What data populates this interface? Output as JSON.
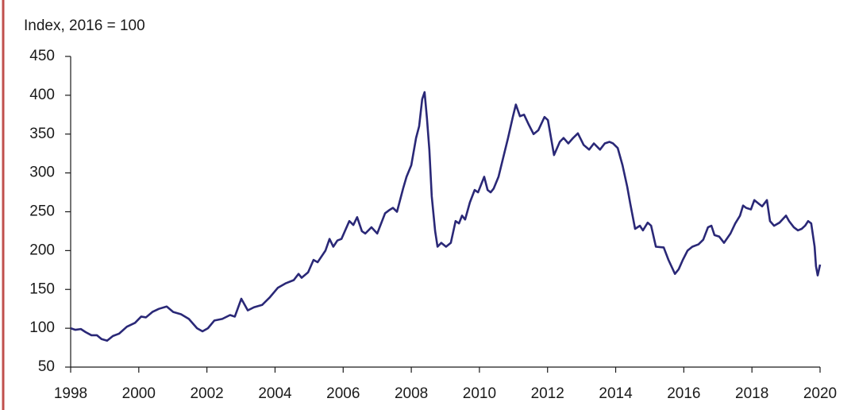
{
  "chart_data": {
    "type": "line",
    "y_label": "Index, 2016 = 100",
    "x": [
      1998.0,
      1998.14,
      1998.3,
      1998.44,
      1998.61,
      1998.77,
      1998.91,
      1999.07,
      1999.24,
      1999.42,
      1999.65,
      1999.89,
      2000.07,
      2000.21,
      2000.4,
      2000.59,
      2000.82,
      2001.01,
      2001.24,
      2001.47,
      2001.71,
      2001.87,
      2002.03,
      2002.22,
      2002.45,
      2002.68,
      2002.82,
      2003.01,
      2003.2,
      2003.38,
      2003.62,
      2003.85,
      2004.08,
      2004.32,
      2004.55,
      2004.69,
      2004.78,
      2004.97,
      2005.13,
      2005.25,
      2005.48,
      2005.6,
      2005.71,
      2005.83,
      2005.95,
      2006.18,
      2006.3,
      2006.41,
      2006.55,
      2006.65,
      2006.83,
      2007.0,
      2007.23,
      2007.35,
      2007.46,
      2007.58,
      2007.76,
      2007.86,
      2008.0,
      2008.14,
      2008.23,
      2008.32,
      2008.39,
      2008.46,
      2008.53,
      2008.6,
      2008.7,
      2008.77,
      2008.88,
      2009.02,
      2009.16,
      2009.3,
      2009.4,
      2009.49,
      2009.58,
      2009.72,
      2009.86,
      2009.96,
      2010.05,
      2010.14,
      2010.24,
      2010.33,
      2010.42,
      2010.56,
      2010.7,
      2010.84,
      2010.98,
      2011.07,
      2011.19,
      2011.31,
      2011.45,
      2011.59,
      2011.73,
      2011.91,
      2012.01,
      2012.19,
      2012.36,
      2012.47,
      2012.61,
      2012.75,
      2012.89,
      2013.06,
      2013.22,
      2013.36,
      2013.54,
      2013.68,
      2013.82,
      2013.92,
      2014.06,
      2014.2,
      2014.34,
      2014.43,
      2014.57,
      2014.71,
      2014.8,
      2014.94,
      2015.04,
      2015.18,
      2015.41,
      2015.55,
      2015.74,
      2015.85,
      2015.97,
      2016.11,
      2016.25,
      2016.43,
      2016.57,
      2016.71,
      2016.81,
      2016.9,
      2017.04,
      2017.18,
      2017.37,
      2017.51,
      2017.65,
      2017.74,
      2017.83,
      2017.97,
      2018.07,
      2018.21,
      2018.3,
      2018.44,
      2018.53,
      2018.65,
      2018.81,
      2019.0,
      2019.09,
      2019.23,
      2019.35,
      2019.46,
      2019.56,
      2019.65,
      2019.74,
      2019.84,
      2019.88,
      2019.93,
      2020.0
    ],
    "series": [
      {
        "color": "#2a2877",
        "values": [
          100,
          98,
          99,
          95,
          91,
          91,
          86,
          84,
          90,
          93,
          102,
          107,
          115,
          114,
          121,
          125,
          128,
          121,
          118,
          112,
          100,
          96,
          100,
          110,
          112,
          117,
          115,
          138,
          123,
          127,
          130,
          140,
          152,
          158,
          162,
          170,
          165,
          172,
          188,
          185,
          200,
          215,
          205,
          213,
          215,
          238,
          233,
          243,
          225,
          222,
          230,
          222,
          248,
          252,
          255,
          250,
          280,
          295,
          310,
          345,
          360,
          395,
          404,
          370,
          330,
          270,
          225,
          205,
          210,
          205,
          210,
          238,
          235,
          245,
          240,
          262,
          278,
          275,
          285,
          295,
          278,
          275,
          280,
          295,
          320,
          345,
          372,
          388,
          373,
          375,
          362,
          350,
          355,
          372,
          368,
          323,
          340,
          345,
          338,
          345,
          351,
          336,
          330,
          338,
          330,
          338,
          340,
          338,
          332,
          310,
          282,
          260,
          228,
          232,
          226,
          236,
          232,
          205,
          204,
          188,
          170,
          176,
          188,
          200,
          205,
          208,
          214,
          230,
          232,
          220,
          218,
          210,
          222,
          235,
          245,
          258,
          255,
          253,
          265,
          260,
          257,
          265,
          238,
          232,
          236,
          245,
          238,
          230,
          226,
          228,
          232,
          238,
          235,
          205,
          180,
          168,
          182
        ]
      }
    ],
    "xlim": [
      1998,
      2020
    ],
    "xticks": [
      1998,
      2000,
      2002,
      2004,
      2006,
      2008,
      2010,
      2012,
      2014,
      2016,
      2018,
      2020
    ],
    "ylim": [
      50,
      450
    ],
    "yticks": [
      50,
      100,
      150,
      200,
      250,
      300,
      350,
      400,
      450
    ]
  }
}
